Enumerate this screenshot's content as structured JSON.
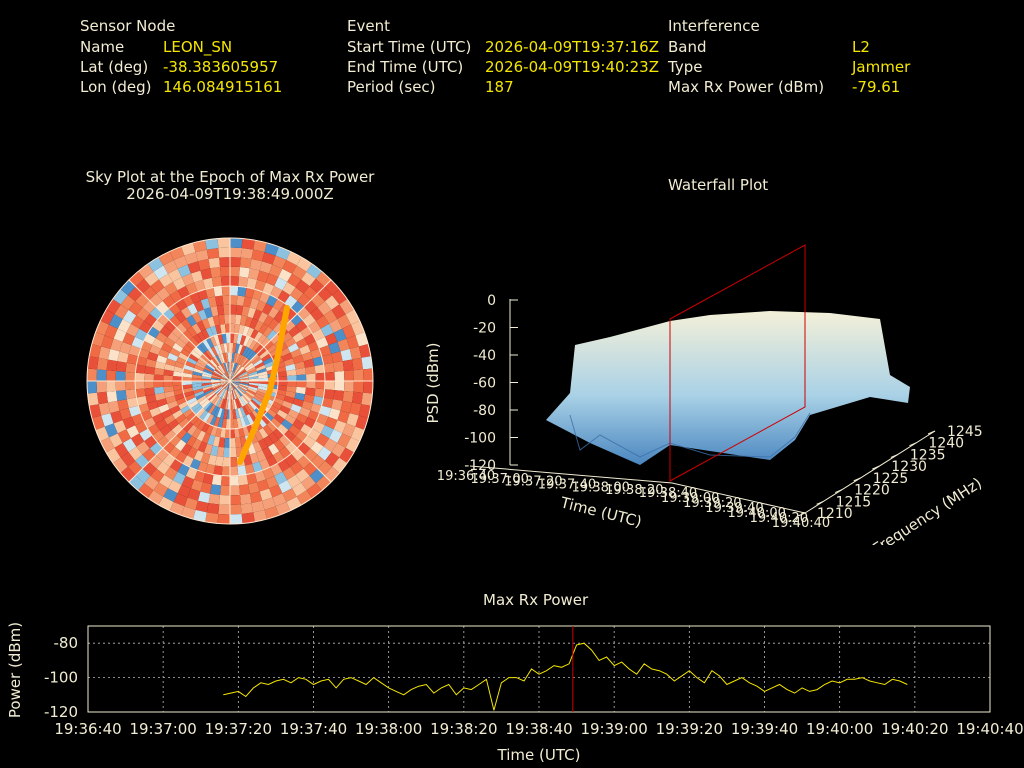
{
  "header": {
    "sensor_node": {
      "heading": "Sensor Node",
      "name_label": "Name",
      "name_value": "LEON_SN",
      "lat_label": "Lat (deg)",
      "lat_value": "-38.383605957",
      "lon_label": "Lon (deg)",
      "lon_value": "146.084915161"
    },
    "event": {
      "heading": "Event",
      "start_label": "Start Time (UTC)",
      "start_value": "2026-04-09T19:37:16Z",
      "end_label": "End Time (UTC)",
      "end_value": "2026-04-09T19:40:23Z",
      "period_label": "Period (sec)",
      "period_value": "187"
    },
    "interference": {
      "heading": "Interference",
      "band_label": "Band",
      "band_value": "L2",
      "type_label": "Type",
      "type_value": "Jammer",
      "maxrx_label": "Max Rx Power (dBm)",
      "maxrx_value": "-79.61"
    }
  },
  "sky_plot": {
    "title_line1": "Sky Plot at the Epoch of Max Rx Power",
    "title_line2": "2026-04-09T19:38:49.000Z",
    "track_color": "#ffa500"
  },
  "waterfall": {
    "title": "Waterfall Plot",
    "zlabel": "PSD (dBm)",
    "xlabel": "Time (UTC)",
    "ylabel": "Frequency (MHz)",
    "z_ticks": [
      "0",
      "-20",
      "-40",
      "-60",
      "-80",
      "-100",
      "-120"
    ],
    "time_ticks": [
      "19:36:40",
      "19:37:00",
      "19:37:20",
      "19:37:40",
      "19:38:00",
      "19:38:20",
      "19:38:40",
      "19:39:00",
      "19:39:20",
      "19:39:40",
      "19:40:00",
      "19:40:20",
      "19:40:40"
    ],
    "freq_ticks": [
      "1210",
      "1215",
      "1220",
      "1225",
      "1230",
      "1235",
      "1240",
      "1245"
    ],
    "marker_color": "#cc0000"
  },
  "chart_data": {
    "type": "line",
    "title": "Max Rx Power",
    "xlabel": "Time (UTC)",
    "ylabel": "Power (dBm)",
    "x_ticks": [
      "19:36:40",
      "19:37:00",
      "19:37:20",
      "19:37:40",
      "19:38:00",
      "19:38:20",
      "19:38:40",
      "19:39:00",
      "19:39:20",
      "19:39:40",
      "19:40:00",
      "19:40:20",
      "19:40:40"
    ],
    "y_ticks": [
      -80,
      -100,
      -120
    ],
    "ylim": [
      -120,
      -70
    ],
    "xlim_sec": [
      0,
      240
    ],
    "grid": true,
    "line_color": "#f5e600",
    "marker_time": "19:38:49",
    "marker_sec": 129,
    "marker_color": "#cc0000",
    "series": [
      {
        "x_sec": [
          36,
          38,
          40,
          42,
          44,
          46,
          48,
          50,
          52,
          54,
          56,
          58,
          60,
          62,
          64,
          66,
          68,
          70,
          72,
          74,
          76,
          78,
          80,
          82,
          84,
          86,
          88,
          90,
          92,
          94,
          96,
          98,
          100,
          102,
          104,
          106,
          108,
          110,
          112,
          114,
          116,
          118,
          120,
          122,
          124,
          126,
          128,
          130,
          132,
          134,
          136,
          138,
          140,
          142,
          144,
          146,
          148,
          150,
          152,
          154,
          156,
          158,
          160,
          162,
          164,
          166,
          168,
          170,
          172,
          174,
          176,
          178,
          180,
          182,
          184,
          186,
          188,
          190,
          192,
          194,
          196,
          198,
          200,
          202,
          204,
          206,
          208,
          210,
          212,
          214,
          216,
          218
        ],
        "values": [
          -110,
          -109,
          -108,
          -111,
          -106,
          -103,
          -104,
          -102,
          -101,
          -103,
          -100,
          -101,
          -104,
          -102,
          -101,
          -106,
          -101,
          -100,
          -102,
          -104,
          -100,
          -103,
          -106,
          -108,
          -110,
          -107,
          -105,
          -104,
          -109,
          -106,
          -104,
          -110,
          -106,
          -107,
          -104,
          -101,
          -119,
          -103,
          -100,
          -100,
          -102,
          -95,
          -98,
          -96,
          -93,
          -94,
          -92,
          -81,
          -80,
          -84,
          -90,
          -88,
          -93,
          -91,
          -95,
          -98,
          -92,
          -95,
          -96,
          -98,
          -102,
          -99,
          -96,
          -100,
          -103,
          -96,
          -99,
          -104,
          -102,
          -100,
          -103,
          -105,
          -108,
          -106,
          -104,
          -107,
          -109,
          -106,
          -108,
          -107,
          -104,
          -102,
          -103,
          -101,
          -101,
          -100,
          -102,
          -103,
          -104,
          -101,
          -102,
          -104
        ]
      }
    ]
  }
}
